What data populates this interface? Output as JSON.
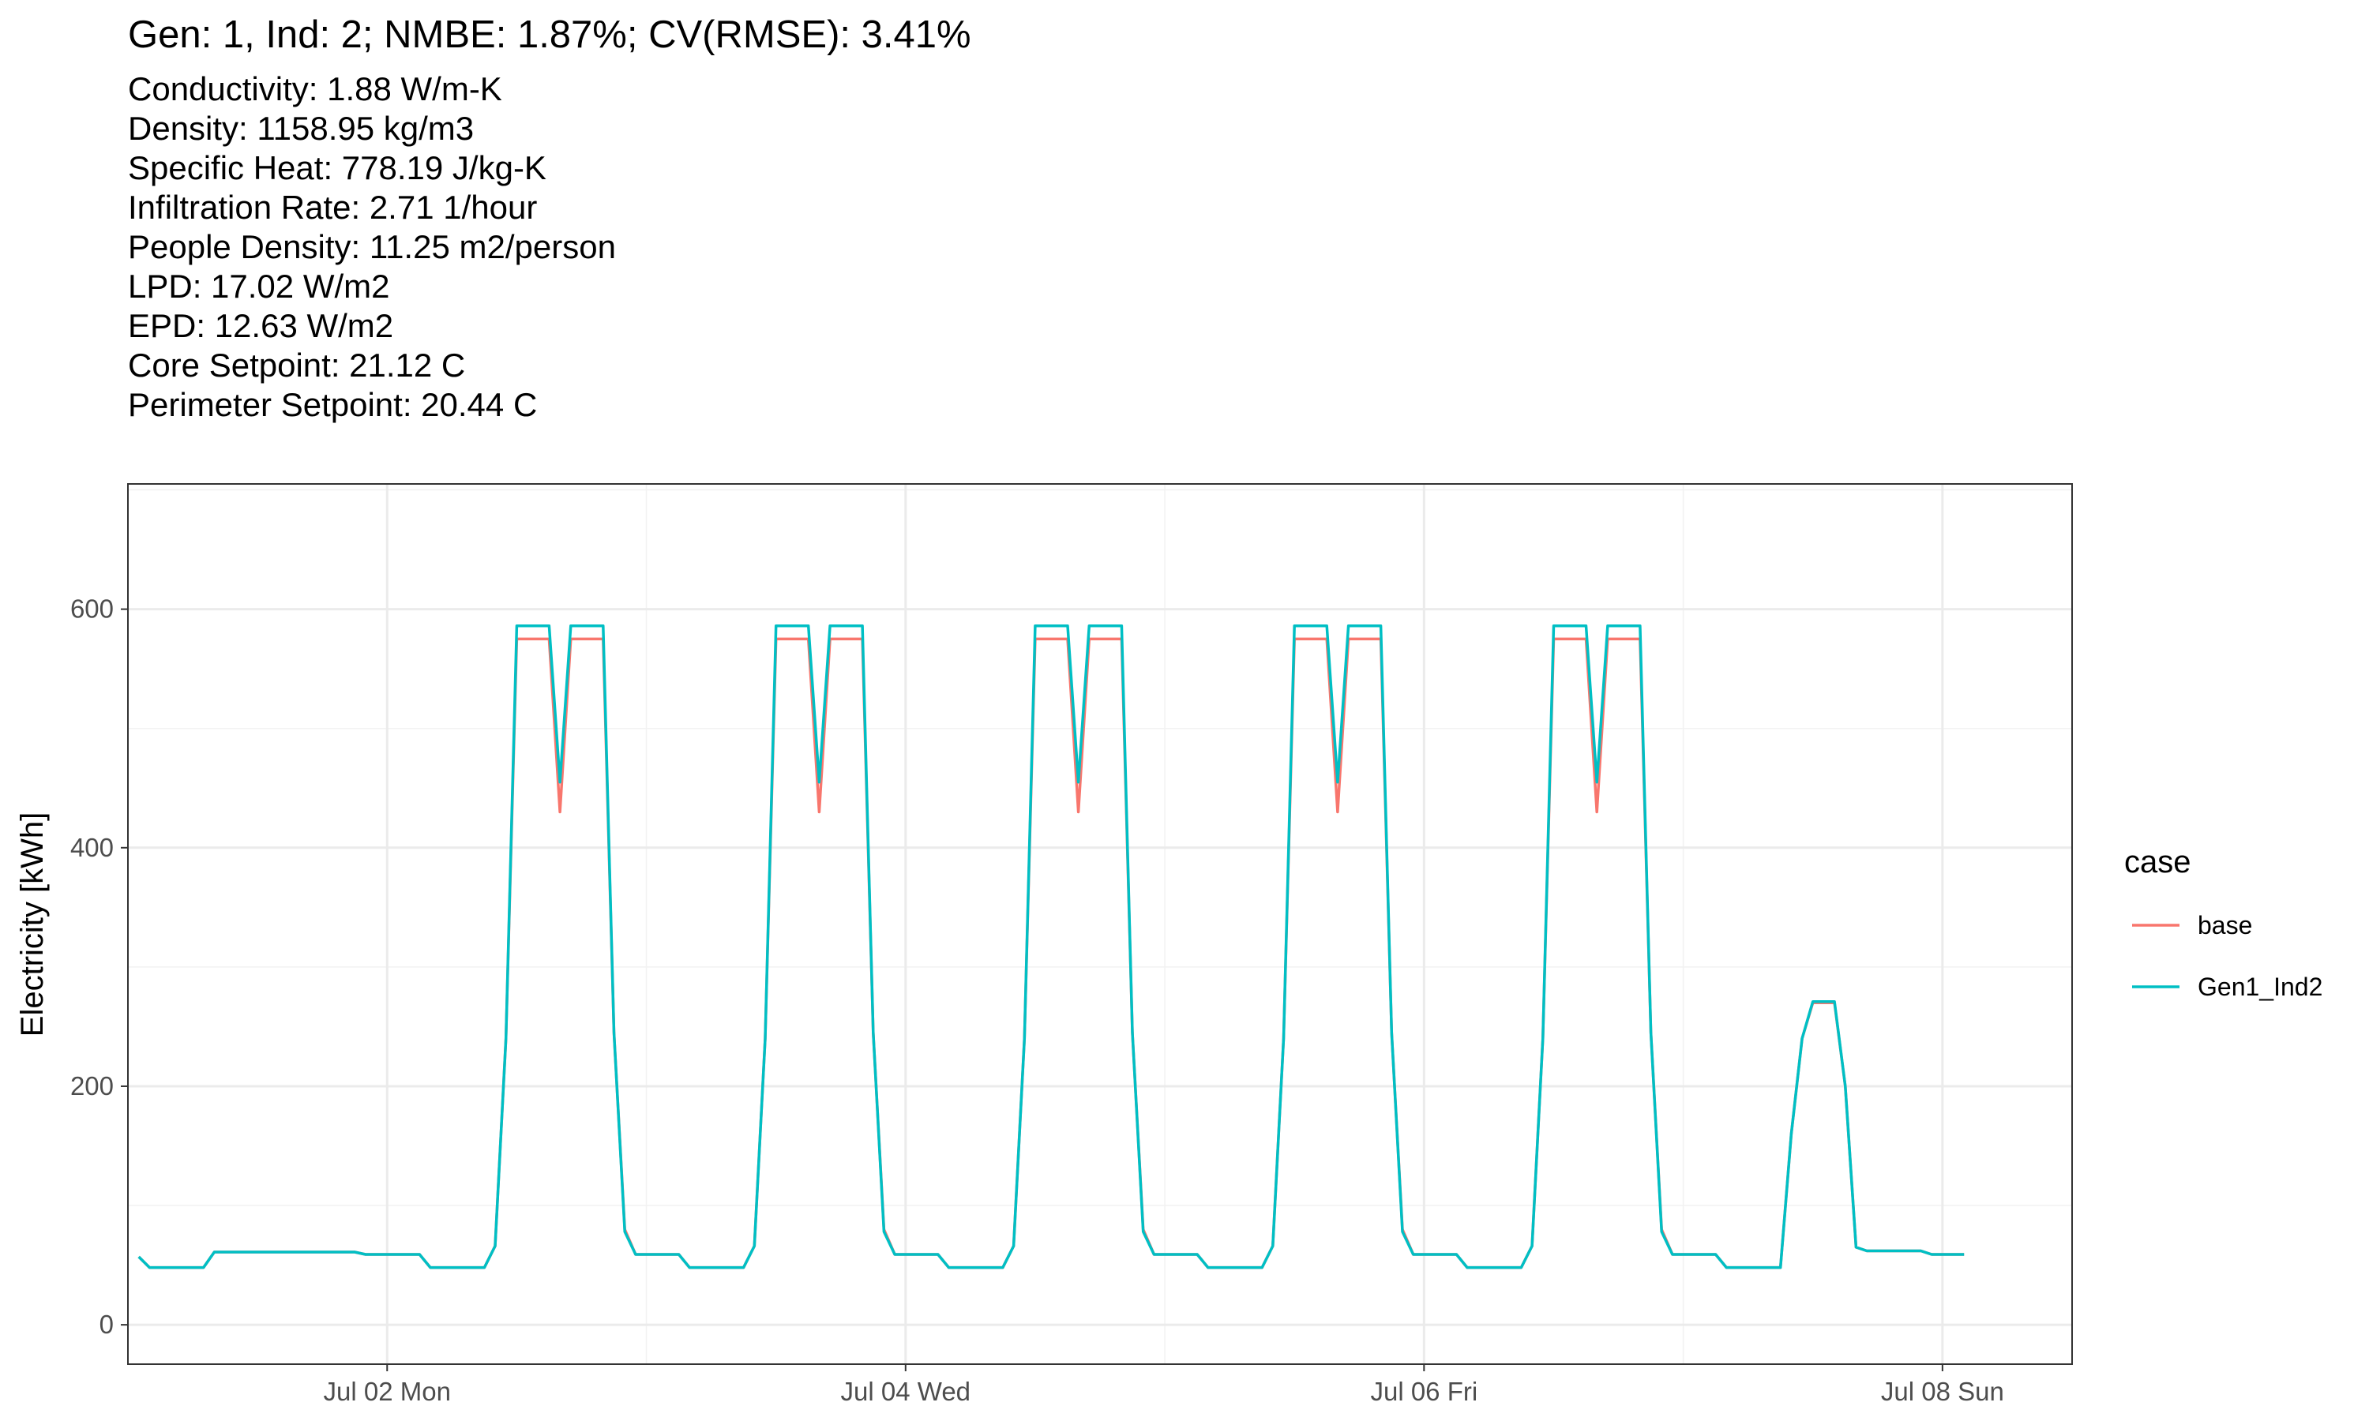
{
  "chart_data": {
    "type": "line",
    "title": "Gen: 1, Ind: 2; NMBE: 1.87%; CV(RMSE): 3.41%",
    "subtitle": "Conductivity: 1.88 W/m-K\nDensity: 1158.95 kg/m3\nSpecific Heat: 778.19 J/kg-K\nInfiltration Rate: 2.71 1/hour\nPeople Density: 11.25 m2/person\nLPD: 17.02 W/m2\nEPD: 12.63 W/m2\nCore Setpoint: 21.12 C\nPerimeter Setpoint: 20.44 C",
    "xlabel": "",
    "ylabel": "Electricity [kWh]",
    "ylim": [
      -33,
      705
    ],
    "xlim": [
      "2018-07-01 00:00",
      "2018-07-08 12:00"
    ],
    "x_ticks": [
      {
        "value": "2018-07-02 00:00",
        "label": "Jul 02 Mon"
      },
      {
        "value": "2018-07-04 00:00",
        "label": "Jul 04 Wed"
      },
      {
        "value": "2018-07-06 00:00",
        "label": "Jul 06 Fri"
      },
      {
        "value": "2018-07-08 00:00",
        "label": "Jul 08 Sun"
      }
    ],
    "y_ticks": [
      0,
      200,
      400,
      600
    ],
    "grid": true,
    "legend": {
      "title": "case",
      "position": "right"
    },
    "x_start": "2018-07-01 01:00",
    "x_step_hours": 1,
    "series": [
      {
        "name": "base",
        "color": "#F8766D",
        "values": [
          57,
          48,
          48,
          48,
          48,
          48,
          48,
          61,
          61,
          61,
          61,
          61,
          61,
          61,
          61,
          61,
          61,
          61,
          61,
          61,
          61,
          59,
          59,
          59,
          59,
          59,
          59,
          48,
          48,
          48,
          48,
          48,
          48,
          66,
          240,
          575,
          575,
          575,
          575,
          430,
          575,
          575,
          575,
          575,
          245,
          80,
          59,
          59,
          59,
          59,
          59,
          48,
          48,
          48,
          48,
          48,
          48,
          66,
          240,
          575,
          575,
          575,
          575,
          430,
          575,
          575,
          575,
          575,
          245,
          80,
          59,
          59,
          59,
          59,
          59,
          48,
          48,
          48,
          48,
          48,
          48,
          66,
          240,
          575,
          575,
          575,
          575,
          430,
          575,
          575,
          575,
          575,
          245,
          80,
          59,
          59,
          59,
          59,
          59,
          48,
          48,
          48,
          48,
          48,
          48,
          66,
          240,
          575,
          575,
          575,
          575,
          430,
          575,
          575,
          575,
          575,
          245,
          80,
          59,
          59,
          59,
          59,
          59,
          48,
          48,
          48,
          48,
          48,
          48,
          66,
          240,
          575,
          575,
          575,
          575,
          430,
          575,
          575,
          575,
          575,
          245,
          80,
          59,
          59,
          59,
          59,
          59,
          48,
          48,
          48,
          48,
          48,
          48,
          160,
          240,
          270,
          270,
          270,
          200,
          65,
          62,
          62,
          62,
          62,
          62,
          62,
          59,
          59,
          59,
          59
        ]
      },
      {
        "name": "Gen1_Ind2",
        "color": "#00BFC4",
        "values": [
          57,
          48,
          48,
          48,
          48,
          48,
          48,
          61,
          61,
          61,
          61,
          61,
          61,
          61,
          61,
          61,
          61,
          61,
          61,
          61,
          61,
          59,
          59,
          59,
          59,
          59,
          59,
          48,
          48,
          48,
          48,
          48,
          48,
          66,
          240,
          586,
          586,
          586,
          586,
          455,
          586,
          586,
          586,
          586,
          245,
          78,
          59,
          59,
          59,
          59,
          59,
          48,
          48,
          48,
          48,
          48,
          48,
          66,
          240,
          586,
          586,
          586,
          586,
          455,
          586,
          586,
          586,
          586,
          245,
          78,
          59,
          59,
          59,
          59,
          59,
          48,
          48,
          48,
          48,
          48,
          48,
          66,
          240,
          586,
          586,
          586,
          586,
          455,
          586,
          586,
          586,
          586,
          245,
          78,
          59,
          59,
          59,
          59,
          59,
          48,
          48,
          48,
          48,
          48,
          48,
          66,
          240,
          586,
          586,
          586,
          586,
          455,
          586,
          586,
          586,
          586,
          245,
          78,
          59,
          59,
          59,
          59,
          59,
          48,
          48,
          48,
          48,
          48,
          48,
          66,
          240,
          586,
          586,
          586,
          586,
          455,
          586,
          586,
          586,
          586,
          245,
          78,
          59,
          59,
          59,
          59,
          59,
          48,
          48,
          48,
          48,
          48,
          48,
          160,
          240,
          271,
          271,
          271,
          200,
          65,
          62,
          62,
          62,
          62,
          62,
          62,
          59,
          59,
          59,
          59
        ]
      }
    ]
  }
}
